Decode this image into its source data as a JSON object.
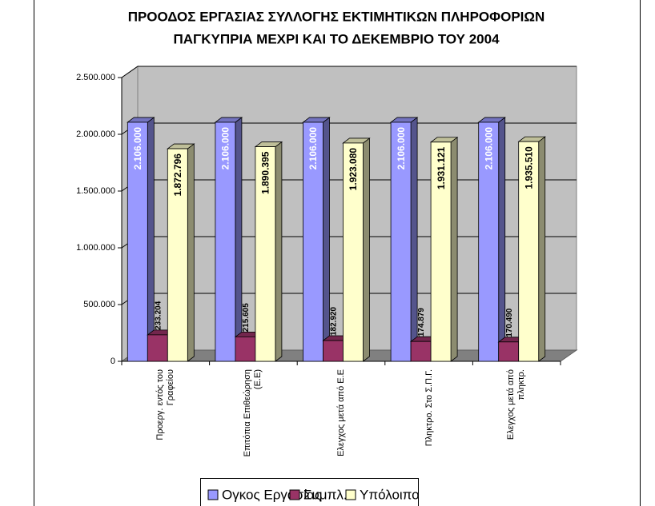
{
  "chart_data": {
    "type": "bar3d",
    "title": [
      "ΠΡΟΟΔΟΣ ΕΡΓΑΣΙΑΣ ΣΥΛΛΟΓΗΣ ΕΚΤΙΜΗΤΙΚΩΝ ΠΛΗΡΟΦΟΡΙΩΝ",
      "ΠΑΓΚΥΠΡΙΑ ΜΕΧΡΙ ΚΑΙ ΤΟ ΔΕΚΕΜΒΡΙΟ ΤΟΥ 2004"
    ],
    "categories": [
      "Προεργ. εντός του Γραφείου",
      "Επιτόπια Επιθεώρηση (Ε.Ε)",
      "Ελεγχος μετά από Ε.Ε",
      "Πληκτρο. Στο Σ.Π.Γ.",
      "Ελεγχος μετά από πληκτρ."
    ],
    "series": [
      {
        "name": "Ογκος Εργασίας",
        "color": "#9999ff",
        "values": [
          2106000,
          2106000,
          2106000,
          2106000,
          2106000
        ],
        "value_labels": [
          "2.106.000",
          "2.106.000",
          "2.106.000",
          "2.106.000",
          "2.106.000"
        ]
      },
      {
        "name": "Συμπλ.",
        "color": "#993366",
        "values": [
          233204,
          215605,
          182920,
          174879,
          170490
        ],
        "value_labels": [
          "233.204",
          "215.605",
          "182.920",
          "174.879",
          "170.490"
        ]
      },
      {
        "name": "Υπόλοιπο",
        "color": "#ffffcc",
        "values": [
          1872796,
          1890395,
          1923080,
          1931121,
          1935510
        ],
        "value_labels": [
          "1.872.796",
          "1.890.395",
          "1.923.080",
          "1.931.121",
          "1.935.510"
        ]
      }
    ],
    "ylim": [
      0,
      2500000
    ],
    "yticks": [
      0,
      {
        "value": 500000,
        "label": "500.000"
      },
      {
        "value": 1000000,
        "label": "1.000.000"
      },
      {
        "value": 1500000,
        "label": "1.500.000"
      },
      {
        "value": 2000000,
        "label": "2.000.000"
      },
      {
        "value": 2500000,
        "label": "2.500.000"
      }
    ],
    "grid": true,
    "legend": "bottom"
  }
}
